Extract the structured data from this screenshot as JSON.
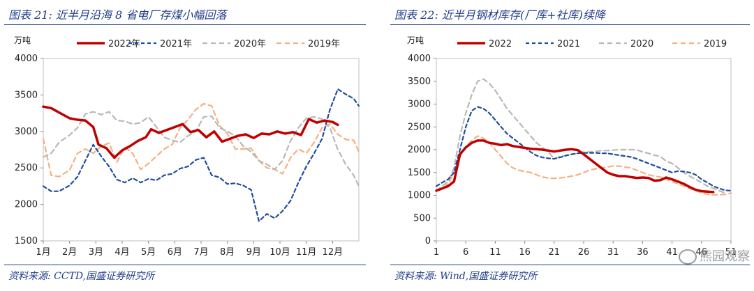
{
  "left": {
    "title": "图表 21:  近半月沿海 8 省电厂存煤小幅回落",
    "source": "资料来源:  CCTD,国盛证券研究所"
  },
  "right": {
    "title": "图表 22:  近半月钢材库存(厂库+社库)续降",
    "source": "资料来源:  Wind,国盛证券研究所"
  },
  "watermark": "熊园观察",
  "colors": {
    "s2022": "#c00000",
    "s2021": "#1f4e9c",
    "s2020": "#b8b8b8",
    "s2019": "#f4b183",
    "title": "#1f3d8a"
  },
  "chart_data": [
    {
      "type": "line",
      "id": "coal",
      "unit": "万吨",
      "title": "近半月沿海 8 省电厂存煤小幅回落",
      "categories": [
        "1月",
        "2月",
        "3月",
        "4月",
        "5月",
        "6月",
        "7月",
        "8月",
        "9月",
        "10月",
        "11月",
        "12月"
      ],
      "ylim": [
        1500,
        4000
      ],
      "yticks": [
        1500,
        2000,
        2500,
        3000,
        3500,
        4000
      ],
      "legend": [
        "2022年",
        "2021年",
        "2020年",
        "2019年"
      ],
      "series": [
        {
          "name": "2022年",
          "key": "s2022",
          "x": [
            1,
            1.3,
            1.6,
            2,
            2.3,
            2.6,
            2.9,
            3.1,
            3.4,
            3.7,
            4,
            4.3,
            4.6,
            4.9,
            5.1,
            5.4,
            5.7,
            6,
            6.3,
            6.6,
            6.9,
            7.2,
            7.5,
            7.8,
            8.1,
            8.4,
            8.7,
            9,
            9.3,
            9.6,
            9.9,
            10.2,
            10.5,
            10.8,
            11.1,
            11.4,
            11.7,
            12,
            12.2
          ],
          "values": [
            3340,
            3320,
            3260,
            3180,
            3160,
            3150,
            3060,
            2820,
            2770,
            2640,
            2740,
            2800,
            2870,
            2920,
            3030,
            2980,
            3020,
            3060,
            3100,
            2990,
            3020,
            2920,
            3000,
            2860,
            2900,
            2940,
            2960,
            2910,
            2970,
            2960,
            3000,
            2970,
            2990,
            2950,
            3170,
            3120,
            3150,
            3130,
            3090
          ]
        },
        {
          "name": "2021年",
          "key": "s2021",
          "x": [
            1,
            1.3,
            1.6,
            2,
            2.3,
            2.6,
            2.9,
            3.2,
            3.5,
            3.8,
            4.1,
            4.4,
            4.7,
            5,
            5.3,
            5.6,
            5.9,
            6.2,
            6.5,
            6.8,
            7.1,
            7.4,
            7.7,
            8,
            8.3,
            8.6,
            8.9,
            9.2,
            9.5,
            9.8,
            10.1,
            10.4,
            10.7,
            11,
            11.3,
            11.6,
            11.9,
            12.2,
            12.5,
            12.8,
            13
          ],
          "values": [
            2250,
            2180,
            2180,
            2260,
            2380,
            2600,
            2820,
            2660,
            2520,
            2340,
            2300,
            2360,
            2300,
            2350,
            2330,
            2400,
            2420,
            2490,
            2520,
            2610,
            2640,
            2400,
            2370,
            2280,
            2290,
            2260,
            2200,
            1770,
            1870,
            1810,
            1910,
            2050,
            2300,
            2520,
            2700,
            2900,
            3300,
            3580,
            3510,
            3450,
            3350
          ]
        },
        {
          "name": "2020年",
          "key": "s2020",
          "x": [
            1,
            1.3,
            1.6,
            2,
            2.3,
            2.6,
            2.9,
            3.2,
            3.5,
            3.8,
            4.1,
            4.4,
            4.7,
            5,
            5.3,
            5.6,
            5.9,
            6.2,
            6.5,
            6.8,
            7.1,
            7.4,
            7.7,
            8,
            8.3,
            8.6,
            8.9,
            9.2,
            9.5,
            9.8,
            10.1,
            10.4,
            10.7,
            11,
            11.3,
            11.6,
            11.9,
            12.2,
            12.5,
            12.8,
            13
          ],
          "values": [
            2650,
            2700,
            2850,
            2950,
            3050,
            3240,
            3270,
            3230,
            3270,
            3150,
            3140,
            3100,
            3120,
            3200,
            3060,
            2920,
            2880,
            2850,
            2940,
            3000,
            3200,
            3210,
            3050,
            3000,
            2940,
            2800,
            2720,
            2600,
            2550,
            2480,
            2600,
            2870,
            3050,
            3180,
            3200,
            3170,
            3050,
            2750,
            2550,
            2400,
            2250
          ]
        },
        {
          "name": "2019年",
          "key": "s2019",
          "x": [
            1,
            1.3,
            1.6,
            2,
            2.3,
            2.6,
            2.9,
            3.2,
            3.5,
            3.8,
            4.1,
            4.4,
            4.7,
            5,
            5.3,
            5.6,
            5.9,
            6.2,
            6.5,
            6.8,
            7.1,
            7.4,
            7.7,
            8,
            8.3,
            8.6,
            8.9,
            9.2,
            9.5,
            9.8,
            10.1,
            10.4,
            10.7,
            11,
            11.3,
            11.6,
            11.9,
            12.2,
            12.5,
            12.8,
            13
          ],
          "values": [
            2900,
            2400,
            2380,
            2470,
            2700,
            2760,
            2700,
            2800,
            2840,
            2580,
            2780,
            2700,
            2480,
            2560,
            2660,
            2760,
            2820,
            3050,
            3160,
            3300,
            3380,
            3350,
            3080,
            2970,
            2760,
            2760,
            2770,
            2600,
            2500,
            2480,
            2420,
            2640,
            2760,
            2700,
            2850,
            3050,
            3100,
            2960,
            2890,
            2880,
            2720
          ]
        }
      ]
    },
    {
      "type": "line",
      "id": "steel",
      "unit": "万吨",
      "title": "近半月钢材库存(厂库+社库)续降",
      "xlim": [
        1,
        51
      ],
      "xticks": [
        1,
        6,
        11,
        16,
        21,
        26,
        31,
        36,
        41,
        46,
        51
      ],
      "ylim": [
        0,
        4000
      ],
      "yticks": [
        0,
        500,
        1000,
        1500,
        2000,
        2500,
        3000,
        3500,
        4000
      ],
      "legend": [
        "2022",
        "2021",
        "2020",
        "2019"
      ],
      "series": [
        {
          "name": "2022",
          "key": "s2022",
          "x": [
            1,
            2,
            3,
            4,
            5,
            6,
            7,
            8,
            9,
            10,
            11,
            12,
            13,
            14,
            15,
            16,
            17,
            18,
            19,
            20,
            21,
            22,
            23,
            24,
            25,
            26,
            27,
            28,
            29,
            30,
            31,
            32,
            33,
            34,
            35,
            36,
            37,
            38,
            39,
            40,
            41,
            42,
            43,
            44,
            45,
            46,
            47,
            48
          ],
          "values": [
            1100,
            1150,
            1200,
            1300,
            1900,
            2050,
            2150,
            2200,
            2200,
            2150,
            2130,
            2100,
            2120,
            2080,
            2060,
            2040,
            2020,
            2010,
            2000,
            1980,
            1960,
            1980,
            2000,
            2010,
            1990,
            1900,
            1800,
            1700,
            1600,
            1500,
            1450,
            1420,
            1420,
            1400,
            1380,
            1390,
            1380,
            1320,
            1330,
            1390,
            1350,
            1300,
            1250,
            1180,
            1120,
            1090,
            1080,
            1070
          ]
        },
        {
          "name": "2021",
          "key": "s2021",
          "x": [
            1,
            2,
            3,
            4,
            5,
            6,
            7,
            8,
            9,
            10,
            11,
            12,
            13,
            14,
            15,
            16,
            17,
            18,
            19,
            20,
            21,
            22,
            23,
            24,
            25,
            26,
            27,
            28,
            29,
            30,
            31,
            32,
            33,
            34,
            35,
            36,
            37,
            38,
            39,
            40,
            41,
            42,
            43,
            44,
            45,
            46,
            47,
            48,
            49,
            50,
            51
          ],
          "values": [
            1200,
            1280,
            1350,
            1500,
            2000,
            2500,
            2850,
            2940,
            2900,
            2800,
            2650,
            2500,
            2350,
            2250,
            2150,
            2050,
            1950,
            1870,
            1830,
            1810,
            1800,
            1830,
            1870,
            1900,
            1920,
            1930,
            1930,
            1930,
            1920,
            1920,
            1900,
            1880,
            1860,
            1840,
            1800,
            1750,
            1700,
            1650,
            1600,
            1550,
            1500,
            1530,
            1520,
            1500,
            1450,
            1350,
            1280,
            1200,
            1150,
            1110,
            1100
          ]
        },
        {
          "name": "2020",
          "key": "s2020",
          "x": [
            1,
            2,
            3,
            4,
            5,
            6,
            7,
            8,
            9,
            10,
            11,
            12,
            13,
            14,
            15,
            16,
            17,
            18,
            19,
            20,
            21,
            22,
            23,
            24,
            25,
            26,
            27,
            28,
            29,
            30,
            31,
            32,
            33,
            34,
            35,
            36,
            37,
            38,
            39,
            40,
            41,
            42,
            43,
            44,
            45,
            46,
            47,
            48,
            49,
            50
          ],
          "values": [
            1100,
            1200,
            1300,
            1600,
            2300,
            2800,
            3200,
            3500,
            3550,
            3450,
            3300,
            3100,
            2900,
            2750,
            2600,
            2450,
            2300,
            2150,
            2050,
            1950,
            1800,
            1850,
            1880,
            1900,
            1920,
            1950,
            1950,
            1960,
            1980,
            1980,
            1990,
            2000,
            2000,
            2000,
            2000,
            1950,
            1920,
            1880,
            1850,
            1750,
            1700,
            1600,
            1500,
            1420,
            1350,
            1280,
            1200,
            1150,
            1100,
            1050
          ]
        },
        {
          "name": "2019",
          "key": "s2019",
          "x": [
            1,
            2,
            3,
            4,
            5,
            6,
            7,
            8,
            9,
            10,
            11,
            12,
            13,
            14,
            15,
            16,
            17,
            18,
            19,
            20,
            21,
            22,
            23,
            24,
            25,
            26,
            27,
            28,
            29,
            30,
            31,
            32,
            33,
            34,
            35,
            36,
            37,
            38,
            39,
            40,
            41,
            42,
            43,
            44,
            45,
            46,
            47,
            48,
            49,
            50,
            51
          ],
          "values": [
            1100,
            1150,
            1250,
            1500,
            1850,
            2050,
            2200,
            2300,
            2250,
            2150,
            2000,
            1850,
            1700,
            1600,
            1550,
            1520,
            1500,
            1450,
            1400,
            1380,
            1370,
            1380,
            1400,
            1420,
            1450,
            1500,
            1550,
            1580,
            1600,
            1620,
            1640,
            1640,
            1620,
            1600,
            1550,
            1500,
            1450,
            1420,
            1400,
            1350,
            1300,
            1250,
            1200,
            1150,
            1100,
            1050,
            1020,
            1010,
            1010,
            1020,
            1050
          ]
        }
      ]
    }
  ]
}
